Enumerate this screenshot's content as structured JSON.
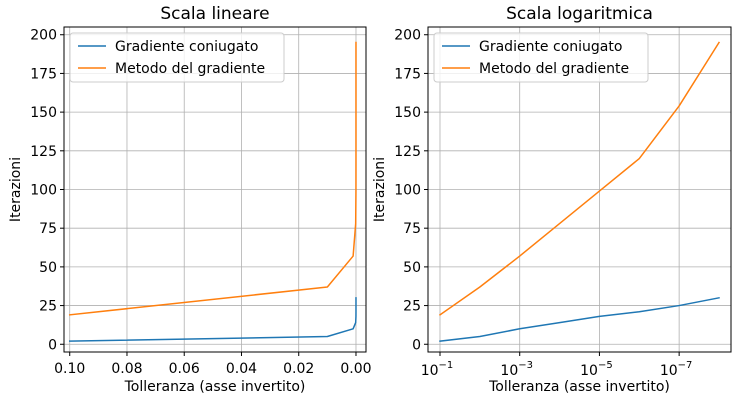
{
  "chart_data": [
    {
      "type": "line",
      "title": "Scala lineare",
      "xlabel": "Tolleranza (asse invertito)",
      "ylabel": "Iterazioni",
      "x_scale": "linear",
      "x_inverted": true,
      "xlim": [
        0.102,
        -0.0035
      ],
      "ylim": [
        -5,
        205
      ],
      "xticks": [
        0.1,
        0.08,
        0.06,
        0.04,
        0.02,
        0.0
      ],
      "xtick_labels": [
        "0.10",
        "0.08",
        "0.06",
        "0.04",
        "0.02",
        "0.00"
      ],
      "yticks": [
        0,
        25,
        50,
        75,
        100,
        125,
        150,
        175,
        200
      ],
      "ytick_labels": [
        "0",
        "25",
        "50",
        "75",
        "100",
        "125",
        "150",
        "175",
        "200"
      ],
      "grid": true,
      "legend_position": "top-left",
      "x": [
        0.1,
        0.01,
        0.001,
        0.0001,
        1e-05,
        1e-06,
        1e-07,
        1e-08
      ],
      "series": [
        {
          "name": "Gradiente coniugato",
          "color": "#1f77b4",
          "values": [
            2,
            5,
            10,
            14,
            18,
            21,
            25,
            30
          ]
        },
        {
          "name": "Metodo del gradiente",
          "color": "#ff7f0e",
          "values": [
            19,
            37,
            57,
            78,
            99,
            120,
            154,
            195
          ]
        }
      ]
    },
    {
      "type": "line",
      "title": "Scala logaritmica",
      "xlabel": "Tolleranza (asse invertito)",
      "ylabel": "Iterazioni",
      "x_scale": "log",
      "x_inverted": true,
      "xlim": [
        0.2,
        5e-09
      ],
      "ylim": [
        -5,
        205
      ],
      "xticks": [
        0.1,
        0.001,
        1e-05,
        1e-07
      ],
      "xtick_labels": [
        {
          "base": "10",
          "exp": "−1"
        },
        {
          "base": "10",
          "exp": "−3"
        },
        {
          "base": "10",
          "exp": "−5"
        },
        {
          "base": "10",
          "exp": "−7"
        }
      ],
      "yticks": [
        0,
        25,
        50,
        75,
        100,
        125,
        150,
        175,
        200
      ],
      "ytick_labels": [
        "0",
        "25",
        "50",
        "75",
        "100",
        "125",
        "150",
        "175",
        "200"
      ],
      "grid": true,
      "legend_position": "top-left",
      "x": [
        0.1,
        0.01,
        0.001,
        0.0001,
        1e-05,
        1e-06,
        1e-07,
        1e-08
      ],
      "series": [
        {
          "name": "Gradiente coniugato",
          "color": "#1f77b4",
          "values": [
            2,
            5,
            10,
            14,
            18,
            21,
            25,
            30
          ]
        },
        {
          "name": "Metodo del gradiente",
          "color": "#ff7f0e",
          "values": [
            19,
            37,
            57,
            78,
            99,
            120,
            154,
            195
          ]
        }
      ]
    }
  ]
}
